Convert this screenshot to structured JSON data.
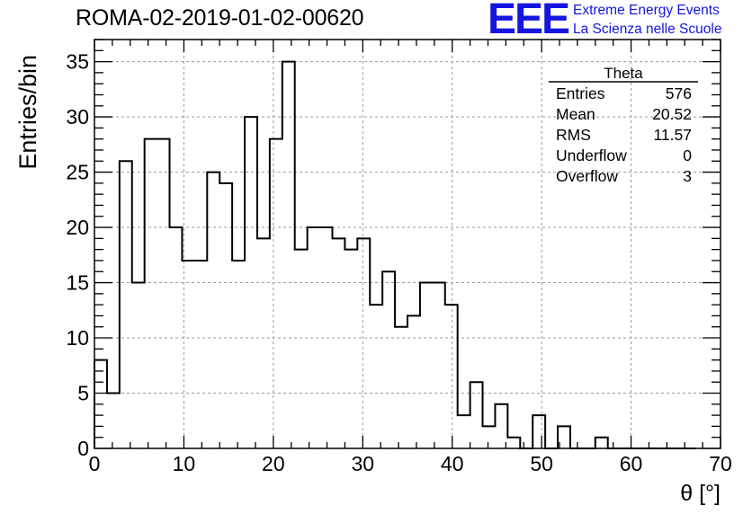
{
  "header": {
    "run_title": "ROMA-02-2019-01-02-00620",
    "logo_text": "EEE",
    "logo_line1": "Extreme Energy Events",
    "logo_line2": "La Scienza nelle Scuole",
    "logo_color": "#1515e0"
  },
  "chart_data": {
    "type": "bar",
    "style": "step-histogram",
    "ylabel": "Entries/bin",
    "xlabel": "θ [°]",
    "xlim": [
      0,
      70
    ],
    "ylim": [
      0,
      37
    ],
    "x_ticks": [
      0,
      10,
      20,
      30,
      40,
      50,
      60,
      70
    ],
    "y_ticks": [
      0,
      5,
      10,
      15,
      20,
      25,
      30,
      35
    ],
    "grid": true,
    "bin_width": 1.4,
    "bin_lows": [
      0,
      1.4,
      2.8,
      4.2,
      5.6,
      7.0,
      8.4,
      9.8,
      11.2,
      12.6,
      14.0,
      15.4,
      16.8,
      18.2,
      19.6,
      21.0,
      22.4,
      23.8,
      25.2,
      26.6,
      28.0,
      29.4,
      30.8,
      32.2,
      33.6,
      35.0,
      36.4,
      37.8,
      39.2,
      40.6,
      42.0,
      43.4,
      44.8,
      46.2,
      47.6,
      49.0,
      50.4,
      51.8,
      53.2,
      54.6,
      56.0,
      57.4,
      58.8,
      60.2,
      61.6,
      63.0,
      64.4,
      65.8
    ],
    "values": [
      8,
      5,
      26,
      15,
      28,
      28,
      20,
      17,
      17,
      25,
      24,
      17,
      30,
      19,
      28,
      35,
      18,
      20,
      20,
      19,
      18,
      19,
      13,
      16,
      11,
      12,
      15,
      15,
      13,
      3,
      6,
      2,
      4,
      1,
      0,
      3,
      0,
      2,
      0,
      0,
      1,
      0,
      0,
      0,
      0,
      0,
      0,
      0
    ],
    "stats_box": {
      "title": "Theta",
      "rows": [
        {
          "label": "Entries",
          "value": "576"
        },
        {
          "label": "Mean",
          "value": "20.52"
        },
        {
          "label": "RMS",
          "value": "11.57"
        },
        {
          "label": "Underflow",
          "value": "0"
        },
        {
          "label": "Overflow",
          "value": "3"
        }
      ],
      "placement": "top-right"
    }
  }
}
